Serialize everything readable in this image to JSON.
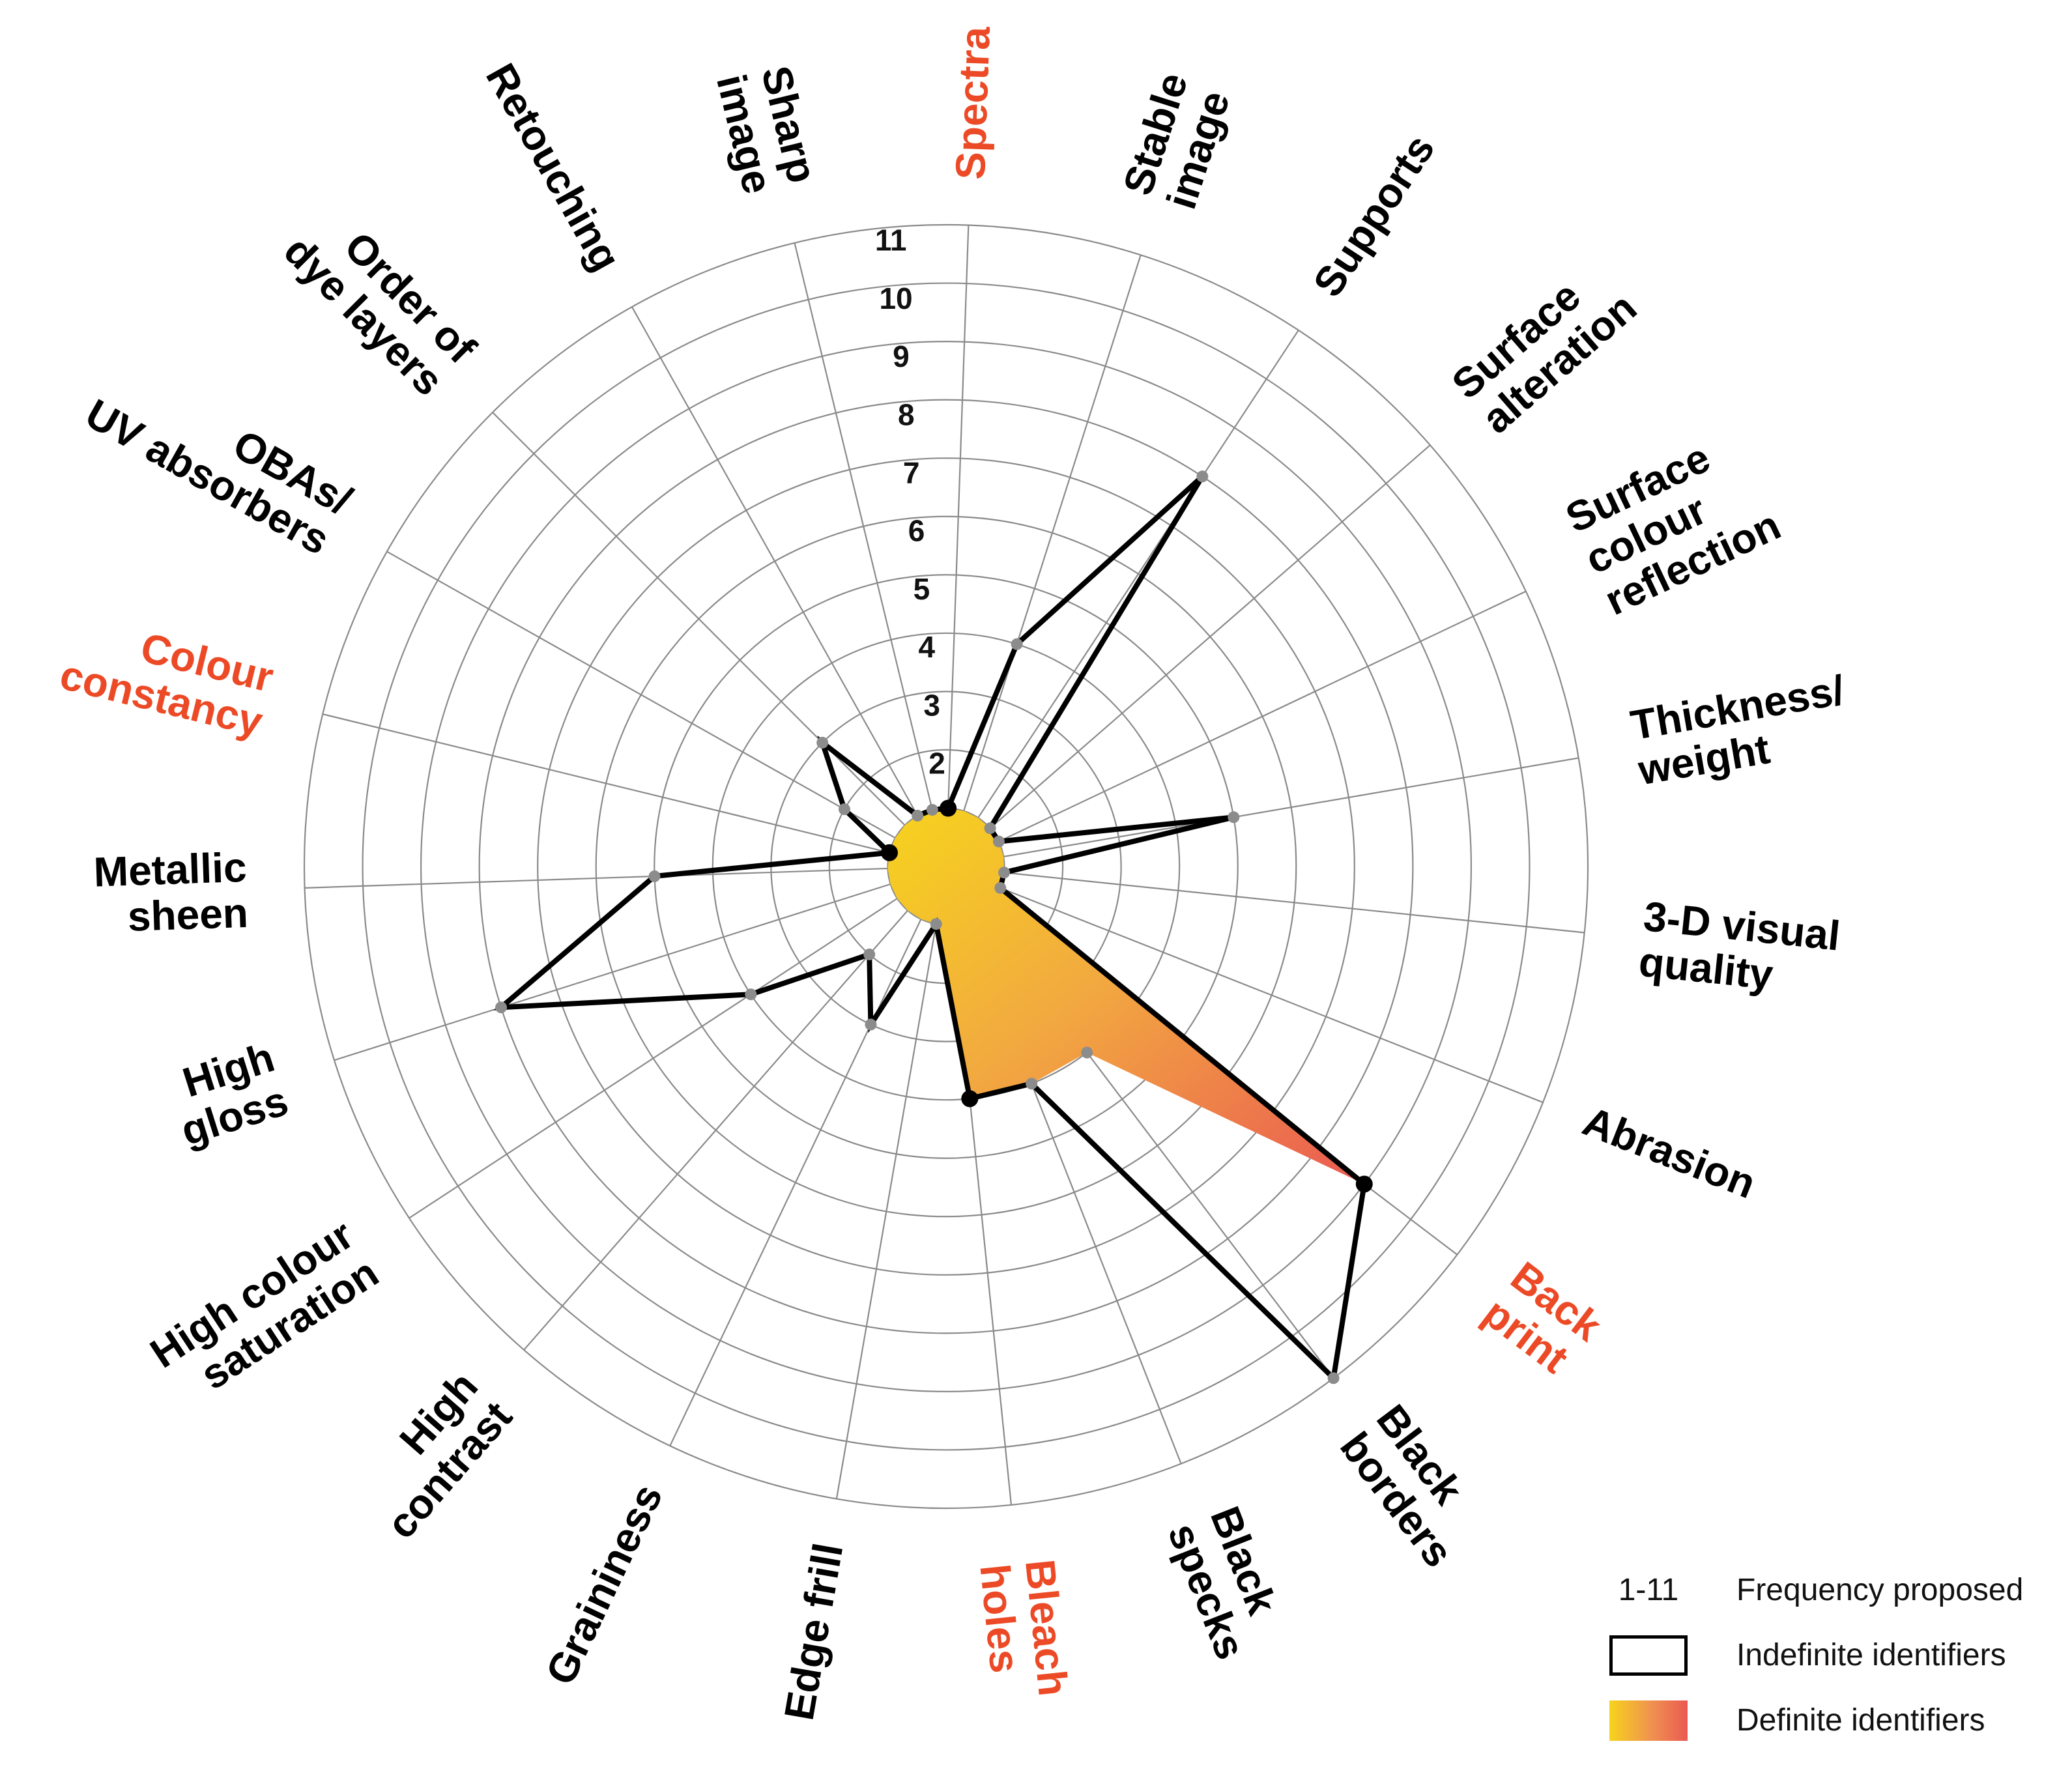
{
  "chart_data": {
    "type": "radar",
    "title": "",
    "scale": {
      "min": 0,
      "max": 11,
      "tick_labels": [
        "2",
        "3",
        "4",
        "5",
        "6",
        "7",
        "8",
        "9",
        "10",
        "11"
      ]
    },
    "axes": [
      {
        "name": "Spectra",
        "label_lines": [
          "Spectra"
        ],
        "definite": true
      },
      {
        "name": "Stable image",
        "label_lines": [
          "Stable",
          "image"
        ],
        "definite": false
      },
      {
        "name": "Supports",
        "label_lines": [
          "Supports"
        ],
        "definite": false
      },
      {
        "name": "Surface alteration",
        "label_lines": [
          "Surface",
          "alteration"
        ],
        "definite": false
      },
      {
        "name": "Surface colour reflection",
        "label_lines": [
          "Surface",
          "colour",
          "reflection"
        ],
        "definite": false
      },
      {
        "name": "Thickness/weight",
        "label_lines": [
          "Thickness/",
          "weight"
        ],
        "definite": false
      },
      {
        "name": "3-D visual quality",
        "label_lines": [
          "3-D visual",
          "quality"
        ],
        "definite": false
      },
      {
        "name": "Abrasion",
        "label_lines": [
          "Abrasion"
        ],
        "definite": false
      },
      {
        "name": "Back print",
        "label_lines": [
          "Back",
          "print"
        ],
        "definite": true
      },
      {
        "name": "Black borders",
        "label_lines": [
          "Black",
          "borders"
        ],
        "definite": false
      },
      {
        "name": "Black specks",
        "label_lines": [
          "Black",
          "specks"
        ],
        "definite": false
      },
      {
        "name": "Bleach holes",
        "label_lines": [
          "Bleach",
          "holes"
        ],
        "definite": true
      },
      {
        "name": "Edge frill",
        "label_lines": [
          "Edge frill"
        ],
        "definite": false
      },
      {
        "name": "Graininess",
        "label_lines": [
          "Graininess"
        ],
        "definite": false
      },
      {
        "name": "High contrast",
        "label_lines": [
          "High",
          "contrast"
        ],
        "definite": false
      },
      {
        "name": "High colour saturation",
        "label_lines": [
          "High colour",
          "saturation"
        ],
        "definite": false
      },
      {
        "name": "High gloss",
        "label_lines": [
          "High",
          "gloss"
        ],
        "definite": false
      },
      {
        "name": "Metallic sheen",
        "label_lines": [
          "Metallic",
          "sheen"
        ],
        "definite": false
      },
      {
        "name": "Colour constancy",
        "label_lines": [
          "Colour",
          "constancy"
        ],
        "definite": true
      },
      {
        "name": "OBAs/UV absorbers",
        "label_lines": [
          "OBAs/",
          "UV absorbers"
        ],
        "definite": false
      },
      {
        "name": "Order of dye layers",
        "label_lines": [
          "Order of",
          "dye layers"
        ],
        "definite": false
      },
      {
        "name": "Retouching",
        "label_lines": [
          "Retouching"
        ],
        "definite": false
      },
      {
        "name": "Sharp image",
        "label_lines": [
          "Sharp",
          "image"
        ],
        "definite": false
      }
    ],
    "series": [
      {
        "name": "Indefinite identifiers",
        "values": [
          1,
          4,
          8,
          1,
          1,
          5,
          1,
          1,
          9,
          11,
          4,
          4,
          1,
          3,
          2,
          4,
          8,
          5,
          1,
          2,
          3,
          1,
          1
        ]
      },
      {
        "name": "Definite identifiers",
        "values": [
          1,
          1,
          1,
          1,
          1,
          1,
          1,
          1,
          9,
          4,
          4,
          4,
          1,
          1,
          1,
          1,
          1,
          1,
          1,
          1,
          1,
          1,
          1
        ]
      }
    ],
    "definite_markers": [
      "Spectra",
      "Back print",
      "Bleach holes",
      "Colour constancy"
    ],
    "legend": [
      {
        "key": "1-11",
        "text": "Frequency proposed"
      },
      {
        "key": "outline-box",
        "text": "Indefinite identifiers"
      },
      {
        "key": "gradient-box",
        "text": "Definite identifiers"
      }
    ]
  },
  "colors": {
    "definite_label": "#ec4a26",
    "indefinite_label": "#000000",
    "gradient_start": "#f6d31d",
    "gradient_end": "#ea5a52",
    "grid": "#8a8a8a",
    "marker_grey": "#8c8c8c"
  }
}
